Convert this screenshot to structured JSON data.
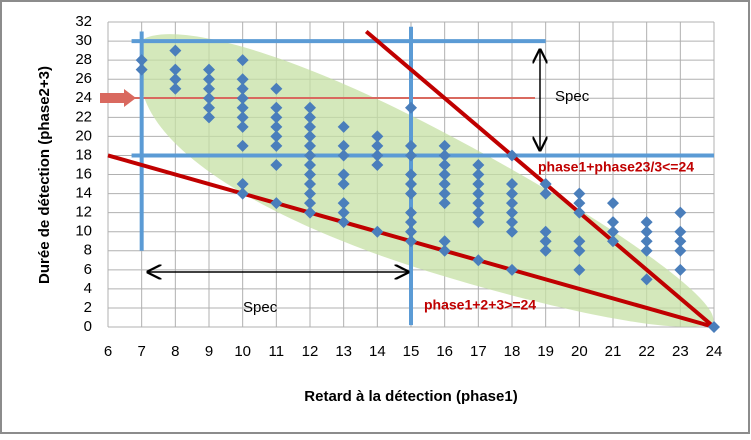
{
  "chart_data": {
    "type": "scatter",
    "x_label": "Retard à la détection (phase1)",
    "y_label": "Durée de détection (phase2+3)",
    "color": "#4a7ebb",
    "x": [
      7,
      7,
      8,
      8,
      8,
      8,
      9,
      9,
      9,
      9,
      9,
      9,
      10,
      10,
      10,
      10,
      10,
      10,
      10,
      10,
      10,
      10,
      11,
      11,
      11,
      11,
      11,
      11,
      11,
      11,
      12,
      12,
      12,
      12,
      12,
      12,
      12,
      12,
      12,
      12,
      12,
      12,
      13,
      13,
      13,
      13,
      13,
      13,
      13,
      13,
      14,
      14,
      14,
      14,
      14,
      15,
      15,
      15,
      15,
      15,
      15,
      15,
      15,
      15,
      15,
      16,
      16,
      16,
      16,
      16,
      16,
      16,
      16,
      16,
      17,
      17,
      17,
      17,
      17,
      17,
      17,
      17,
      18,
      18,
      18,
      18,
      18,
      18,
      18,
      18,
      19,
      19,
      19,
      19,
      19,
      20,
      20,
      20,
      20,
      20,
      20,
      21,
      21,
      21,
      21,
      22,
      22,
      22,
      22,
      22,
      23,
      23,
      23,
      23,
      23,
      24
    ],
    "values": [
      28,
      27,
      29,
      27,
      26,
      25,
      27,
      26,
      25,
      24,
      23,
      22,
      28,
      26,
      25,
      24,
      23,
      22,
      21,
      19,
      15,
      14,
      25,
      23,
      22,
      21,
      20,
      19,
      17,
      13,
      23,
      22,
      21,
      20,
      19,
      18,
      17,
      16,
      15,
      14,
      13,
      12,
      21,
      19,
      18,
      16,
      15,
      13,
      12,
      11,
      20,
      19,
      18,
      17,
      10,
      23,
      19,
      18,
      16,
      15,
      14,
      12,
      11,
      10,
      9,
      19,
      18,
      17,
      16,
      15,
      14,
      13,
      9,
      8,
      17,
      16,
      15,
      14,
      13,
      12,
      11,
      7,
      18,
      15,
      14,
      13,
      12,
      11,
      10,
      6,
      15,
      14,
      10,
      9,
      8,
      14,
      13,
      12,
      9,
      8,
      6,
      13,
      11,
      10,
      9,
      11,
      10,
      9,
      8,
      5,
      12,
      10,
      9,
      8,
      6,
      0
    ],
    "xlim": [
      6,
      24
    ],
    "xticks": [
      6,
      7,
      8,
      9,
      10,
      11,
      12,
      13,
      14,
      15,
      16,
      17,
      18,
      19,
      20,
      21,
      22,
      23,
      24
    ],
    "ylim": [
      0,
      32
    ],
    "yticks": [
      0,
      2,
      4,
      6,
      8,
      10,
      12,
      14,
      16,
      18,
      20,
      22,
      24,
      26,
      28,
      30,
      32
    ],
    "grid": true,
    "reference_lines": [
      {
        "color": "#5b9bd5",
        "x": [
          7,
          7
        ],
        "y": [
          8,
          31
        ]
      },
      {
        "color": "#5b9bd5",
        "x": [
          15,
          15
        ],
        "y": [
          0.2,
          31.5
        ]
      },
      {
        "color": "#5b9bd5",
        "x": [
          6.7,
          19
        ],
        "y": [
          30,
          30
        ]
      },
      {
        "color": "#5b9bd5",
        "x": [
          6.7,
          24
        ],
        "y": [
          18,
          18
        ]
      },
      {
        "color": "#c00000",
        "x": [
          6,
          24
        ],
        "y": [
          18,
          0
        ]
      },
      {
        "color": "#c00000",
        "x": [
          13.67,
          24
        ],
        "y": [
          31,
          0
        ]
      }
    ],
    "annotations": [
      "Spec",
      "Spec",
      "phase1+phase23/3<=24",
      "phase1+2+3>=24"
    ]
  }
}
